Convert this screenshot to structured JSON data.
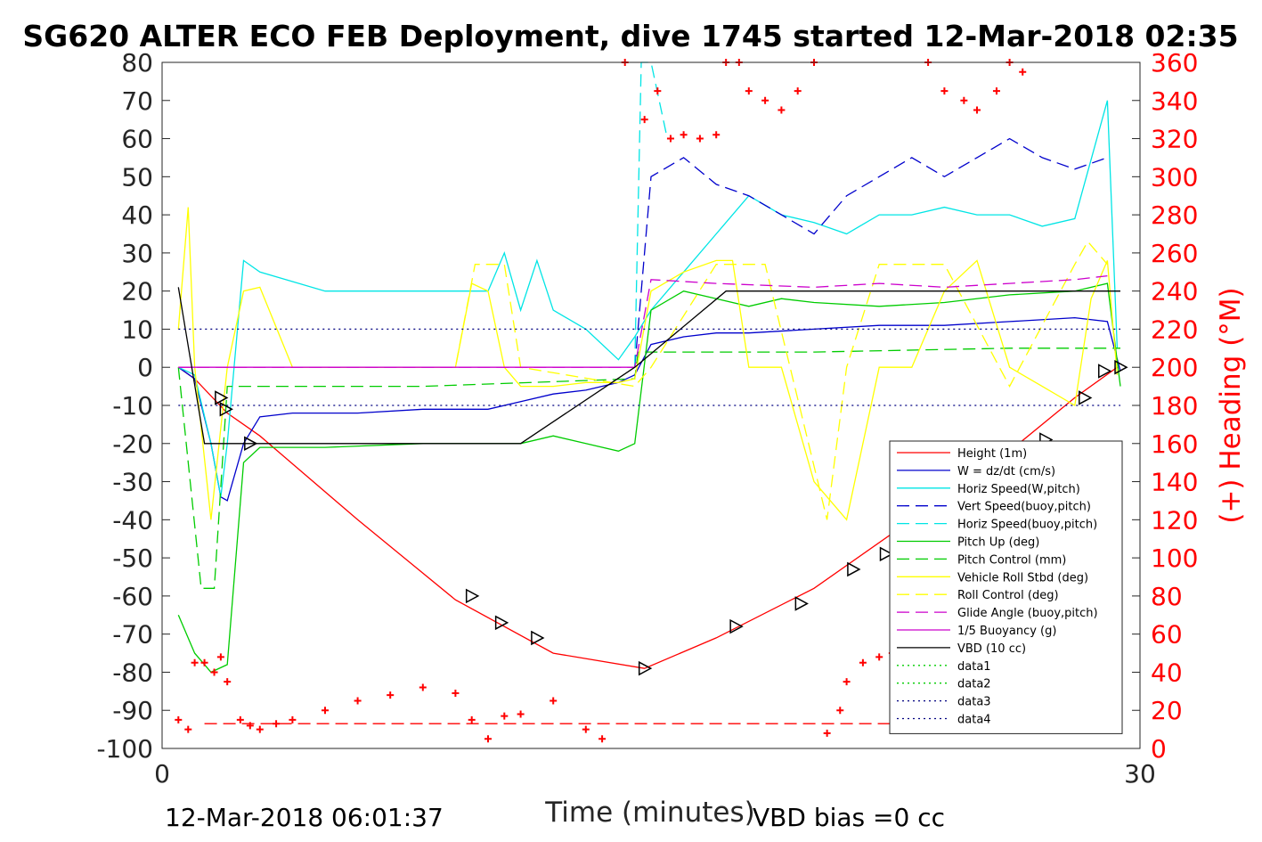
{
  "title": "SG620 ALTER ECO FEB Deployment, dive 1745 started 12-Mar-2018 02:35",
  "xlabel": "Time (minutes)",
  "y2label": "(+) Heading (°M)",
  "footer_left": "12-Mar-2018 06:01:37",
  "footer_right": "VBD bias =0 cc",
  "colors": {
    "heading": "#ff0000",
    "axis": "#262626"
  },
  "chart_data": {
    "type": "line",
    "xlim": [
      0,
      30
    ],
    "ylim": [
      -100,
      80
    ],
    "y2lim": [
      0,
      360
    ],
    "grid": false,
    "legend_position": "bottom-right",
    "x_ticks": [
      "0",
      "30"
    ],
    "y_ticks": [
      "80",
      "70",
      "60",
      "50",
      "40",
      "30",
      "20",
      "10",
      "0",
      "-10",
      "-20",
      "-30",
      "-40",
      "-50",
      "-60",
      "-70",
      "-80",
      "-90",
      "-100"
    ],
    "y2_ticks": [
      "360",
      "340",
      "320",
      "300",
      "280",
      "260",
      "240",
      "220",
      "200",
      "180",
      "160",
      "140",
      "120",
      "100",
      "80",
      "60",
      "40",
      "20",
      "0"
    ],
    "series": [
      {
        "name": "Height (1m)",
        "color": "#ff0000",
        "dash": "solid",
        "x": [
          0.5,
          1,
          2,
          3,
          6,
          9,
          12,
          14.8,
          17,
          20,
          23,
          26,
          28,
          29.3
        ],
        "y": [
          0,
          -3,
          -12,
          -18,
          -40,
          -61,
          -75,
          -79,
          -71,
          -58,
          -40,
          -22,
          -8,
          0
        ]
      },
      {
        "name": "W = dz/dt (cm/s)",
        "color": "#0000cc",
        "dash": "solid",
        "x": [
          0.5,
          1,
          1.5,
          1.8,
          2,
          2.5,
          3,
          4,
          6,
          8,
          10,
          11,
          12,
          13,
          14,
          14.5,
          15,
          16,
          17,
          18,
          20,
          22,
          24,
          26,
          28,
          29,
          29.4
        ],
        "y": [
          0,
          -3,
          -20,
          -34,
          -35,
          -20,
          -13,
          -12,
          -12,
          -11,
          -11,
          -9,
          -7,
          -6,
          -4,
          -2,
          6,
          8,
          9,
          9,
          10,
          11,
          11,
          12,
          13,
          12,
          -1
        ]
      },
      {
        "name": "Horiz Speed(W,pitch)",
        "color": "#00e5e5",
        "dash": "solid",
        "x": [
          0.5,
          1,
          1.5,
          1.8,
          2,
          2.5,
          3,
          5,
          8,
          10,
          10.5,
          11,
          11.5,
          12,
          13,
          14,
          14.5,
          15,
          16,
          17,
          18,
          19,
          20,
          21,
          22,
          23,
          24,
          25,
          26,
          27,
          28,
          29,
          29.3
        ],
        "y": [
          0,
          -2,
          -20,
          -34,
          -20,
          28,
          25,
          20,
          20,
          20,
          30,
          15,
          28,
          15,
          10,
          2,
          8,
          15,
          25,
          35,
          45,
          40,
          38,
          35,
          40,
          40,
          42,
          40,
          40,
          37,
          39,
          70,
          5
        ]
      },
      {
        "name": "Vert Speed(buoy,pitch)",
        "color": "#0000cc",
        "dash": "dash",
        "x": [
          14.5,
          15,
          16,
          17,
          18,
          19,
          20,
          21,
          22,
          23,
          24,
          25,
          26,
          27,
          28,
          29
        ],
        "y": [
          0,
          50,
          55,
          48,
          45,
          40,
          35,
          45,
          50,
          55,
          50,
          55,
          60,
          55,
          52,
          55
        ]
      },
      {
        "name": "Horiz Speed(buoy,pitch)",
        "color": "#00e5e5",
        "dash": "dash",
        "x": [
          14.5,
          14.7,
          15,
          15.5
        ],
        "y": [
          0,
          80,
          80,
          60
        ]
      },
      {
        "name": "Pitch Up (deg)",
        "color": "#00cc00",
        "dash": "solid",
        "x": [
          0.5,
          1,
          1.5,
          2,
          2.5,
          3,
          5,
          8,
          10,
          11,
          12,
          13,
          14,
          14.5,
          15,
          16,
          17,
          18,
          19,
          20,
          22,
          24,
          26,
          28,
          29,
          29.4
        ],
        "y": [
          -65,
          -75,
          -80,
          -78,
          -25,
          -21,
          -21,
          -20,
          -20,
          -20,
          -18,
          -20,
          -22,
          -20,
          15,
          20,
          18,
          16,
          18,
          17,
          16,
          17,
          19,
          20,
          22,
          -5
        ]
      },
      {
        "name": "Pitch Control (mm)",
        "color": "#00cc00",
        "dash": "dash",
        "x": [
          0.5,
          1.2,
          1.6,
          2,
          3,
          8,
          14.5,
          14.6,
          20,
          26,
          29,
          29.4
        ],
        "y": [
          0,
          -58,
          -58,
          -5,
          -5,
          -5,
          -3,
          4,
          4,
          5,
          5,
          5
        ]
      },
      {
        "name": "Vehicle Roll Stbd (deg)",
        "color": "#ffff00",
        "dash": "solid",
        "x": [
          0.5,
          0.8,
          1,
          1.5,
          2,
          2.5,
          3,
          4,
          8,
          9,
          9.5,
          10,
          10.5,
          11,
          12,
          13,
          14,
          14.5,
          15,
          16,
          17,
          17.5,
          18,
          19,
          20,
          21,
          22,
          23,
          24,
          25,
          26,
          27,
          28,
          28.5,
          29,
          29.3
        ],
        "y": [
          10,
          42,
          0,
          -40,
          0,
          20,
          21,
          0,
          0,
          0,
          22,
          20,
          0,
          -5,
          -5,
          -4,
          -4,
          -3,
          20,
          25,
          28,
          28,
          0,
          0,
          -30,
          -40,
          0,
          0,
          20,
          28,
          0,
          -5,
          -10,
          18,
          28,
          -2
        ]
      },
      {
        "name": "Roll Control (deg)",
        "color": "#ffff00",
        "dash": "dash",
        "x": [
          0.5,
          1.5,
          3,
          9,
          9.6,
          10.5,
          11,
          14.5,
          15,
          17,
          18.5,
          20.4,
          21,
          22,
          24,
          26,
          28,
          28.4,
          29
        ],
        "y": [
          0,
          0,
          0,
          0,
          27,
          27,
          0,
          -5,
          0,
          27,
          27,
          -40,
          0,
          27,
          27,
          -5,
          27,
          33,
          27
        ]
      },
      {
        "name": "Glide Angle (buoy,pitch)",
        "color": "#cc00cc",
        "dash": "dash",
        "x": [
          0.5,
          3,
          14,
          14.5,
          15,
          17,
          20,
          22,
          24,
          26,
          28,
          29
        ],
        "y": [
          0,
          0,
          0,
          0,
          23,
          22,
          21,
          22,
          21,
          22,
          23,
          24
        ]
      },
      {
        "name": "1/5 Buoyancy (g)",
        "color": "#cc00cc",
        "dash": "solid",
        "x": [
          0.5,
          14.5
        ],
        "y": [
          0,
          0
        ]
      },
      {
        "name": "VBD (10 cc)",
        "color": "#000000",
        "dash": "solid",
        "x": [
          0.5,
          1.3,
          11,
          14.5,
          17.3,
          29.4
        ],
        "y": [
          21,
          -20,
          -20,
          0,
          20,
          20
        ]
      },
      {
        "name": "data1",
        "color": "#00cc00",
        "dash": "dot",
        "x": [],
        "y": []
      },
      {
        "name": "data2",
        "color": "#00cc00",
        "dash": "dot",
        "x": [],
        "y": []
      },
      {
        "name": "data3",
        "color": "#000080",
        "dash": "dot",
        "x": [
          0.5,
          29.4
        ],
        "y": [
          10,
          10
        ]
      },
      {
        "name": "data4",
        "color": "#000080",
        "dash": "dot",
        "x": [
          0.5,
          29.4
        ],
        "y": [
          -10,
          -10
        ]
      }
    ],
    "heading": {
      "name": "(+) Heading (°M)",
      "color": "#ff0000",
      "mean": 13,
      "x": [
        0.5,
        0.8,
        1.0,
        1.3,
        1.6,
        1.8,
        2.0,
        2.4,
        2.7,
        3.0,
        3.5,
        4,
        5,
        6,
        7,
        8,
        9,
        9.5,
        10,
        10.5,
        11,
        12,
        13,
        13.5,
        14.2,
        14.8,
        15.2,
        15.6,
        16,
        16.5,
        17,
        17.3,
        17.7,
        18,
        18.5,
        19,
        19.5,
        20,
        20.4,
        20.8,
        21,
        21.5,
        22,
        22.4,
        22.6,
        23,
        23.5,
        24,
        24.6,
        25,
        25.6,
        26,
        26.4,
        26.8,
        27.2,
        28,
        28.5,
        29
      ],
      "y": [
        15,
        10,
        45,
        45,
        40,
        48,
        35,
        15,
        12,
        10,
        13,
        15,
        20,
        25,
        28,
        32,
        29,
        15,
        5,
        17,
        18,
        25,
        10,
        5,
        360,
        330,
        345,
        320,
        322,
        320,
        322,
        360,
        360,
        345,
        340,
        335,
        345,
        360,
        8,
        20,
        35,
        45,
        48,
        50,
        20,
        10,
        360,
        345,
        340,
        335,
        345,
        360,
        355,
        10,
        30,
        40,
        45,
        40
      ]
    },
    "markers": {
      "x": [
        1.8,
        1.95,
        2.7,
        9.5,
        10.4,
        11.5,
        14.8,
        17.6,
        19.6,
        21.2,
        22.2,
        23.8,
        24.8,
        26.1,
        27.1,
        28.3,
        28.9,
        29.4
      ],
      "y": [
        -8,
        -11,
        -20,
        -60,
        -67,
        -71,
        -79,
        -68,
        -62,
        -53,
        -49,
        -40,
        -34,
        -24,
        -19,
        -8,
        -1,
        0
      ]
    }
  }
}
